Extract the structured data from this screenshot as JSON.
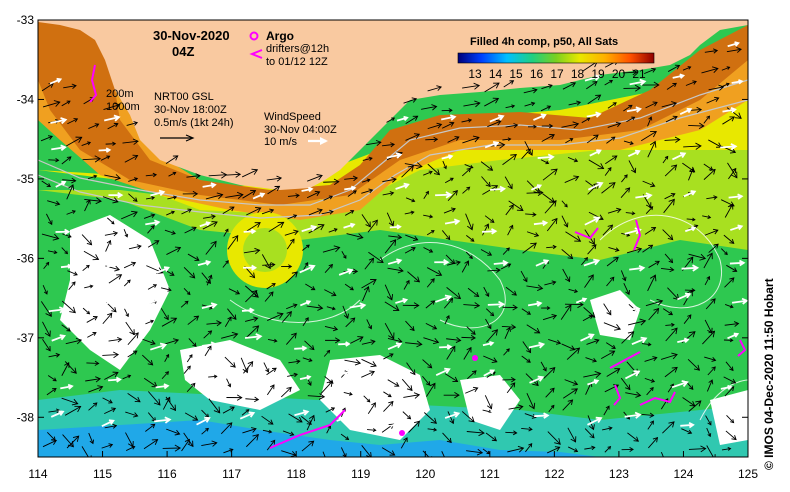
{
  "header": {
    "date": "30-Nov-2020",
    "time": "04Z"
  },
  "legend": {
    "argo_label": "Argo",
    "drifters_label": "drifters@12h",
    "drifters_to": "to 01/12 12Z",
    "colorbar_title": "Filled 4h comp, p50, All Sats",
    "colorbar_ticks": [
      "13",
      "14",
      "15",
      "16",
      "17",
      "18",
      "19",
      "20",
      "21"
    ],
    "isobath_200": "200m",
    "isobath_1000": "1000m",
    "current_source": "NRT00 GSL",
    "current_time": "30-Nov 18:00Z",
    "current_scale": "0.5m/s (1kt 24h)",
    "wind_title": "WindSpeed",
    "wind_time": "30-Nov 04:00Z",
    "wind_scale": "10 m/s"
  },
  "axes": {
    "lon_ticks": [
      "114",
      "115",
      "116",
      "117",
      "118",
      "119",
      "120",
      "121",
      "122",
      "123",
      "124",
      "125"
    ],
    "lat_ticks": [
      "-33",
      "-34",
      "-35",
      "-36",
      "-37",
      "-38"
    ],
    "lon_range": [
      114,
      125
    ],
    "lat_range": [
      -33,
      -38.5
    ]
  },
  "credit": "© IMOS 04-Dec-2020 11:50 Hobart",
  "colors": {
    "land": "#f9c9a0",
    "argo": "#ff00ff",
    "drifter": "#ff00ff",
    "current_arrow": "#000000",
    "wind_arrow": "#ffffff",
    "isobath": "#c8c8c8"
  }
}
